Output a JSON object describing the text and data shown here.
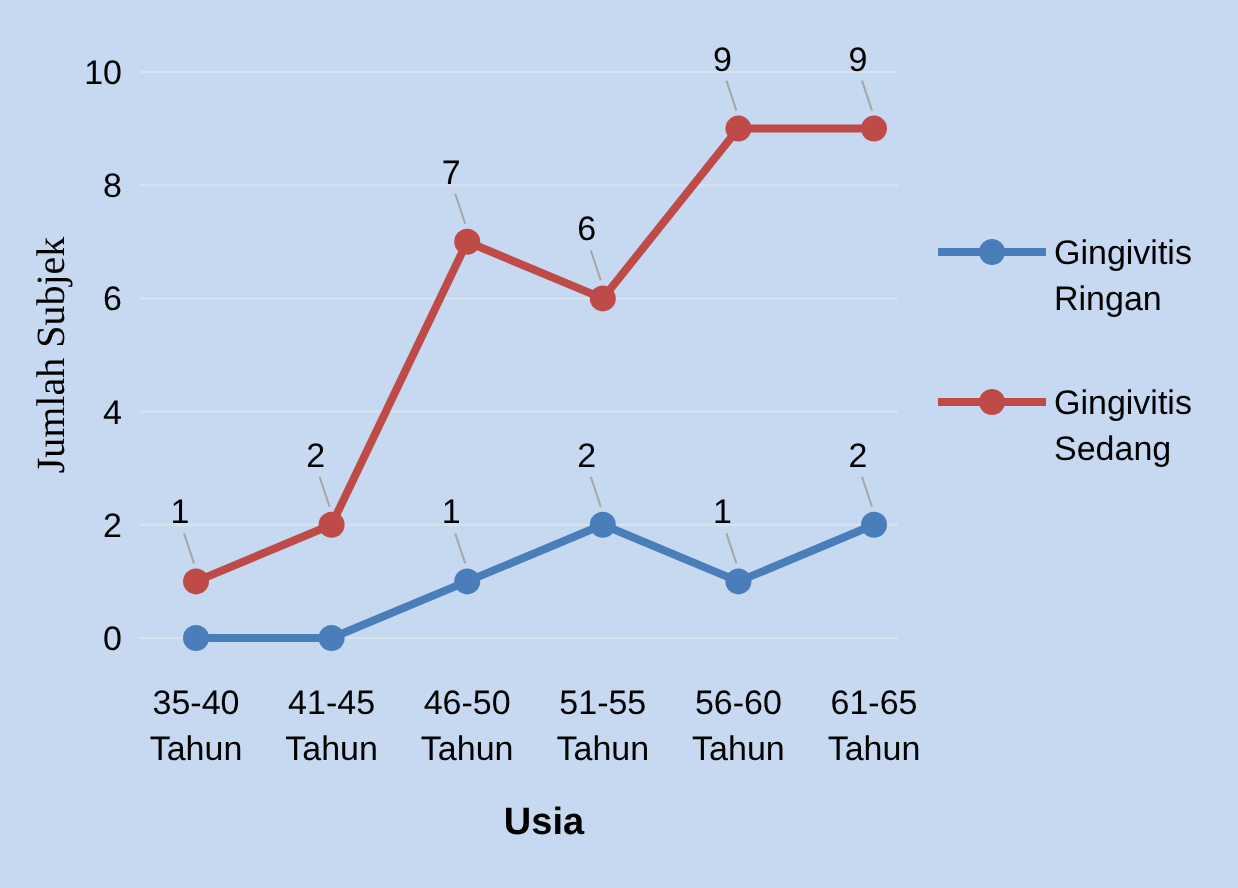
{
  "chart_data": {
    "type": "line",
    "xlabel": "Usia",
    "ylabel": "Jumlah Subjek",
    "categories": [
      "35-40 Tahun",
      "41-45 Tahun",
      "46-50 Tahun",
      "51-55 Tahun",
      "56-60 Tahun",
      "61-65 Tahun"
    ],
    "series": [
      {
        "name": "Gingivitis Ringan",
        "color": "#4a7ebb",
        "values": [
          0,
          0,
          1,
          2,
          1,
          2
        ],
        "value_labels": [
          null,
          null,
          "1",
          "2",
          "1",
          "2"
        ]
      },
      {
        "name": "Gingivitis Sedang",
        "color": "#be4b48",
        "values": [
          1,
          2,
          7,
          6,
          9,
          9
        ],
        "value_labels": [
          "1",
          "2",
          "7",
          "6",
          "9",
          "9"
        ]
      }
    ],
    "ylim": [
      0,
      10
    ],
    "yticks": [
      0,
      2,
      4,
      6,
      8,
      10
    ],
    "grid": "y",
    "legend": "right",
    "marker": "circle",
    "line_style": "solid"
  }
}
